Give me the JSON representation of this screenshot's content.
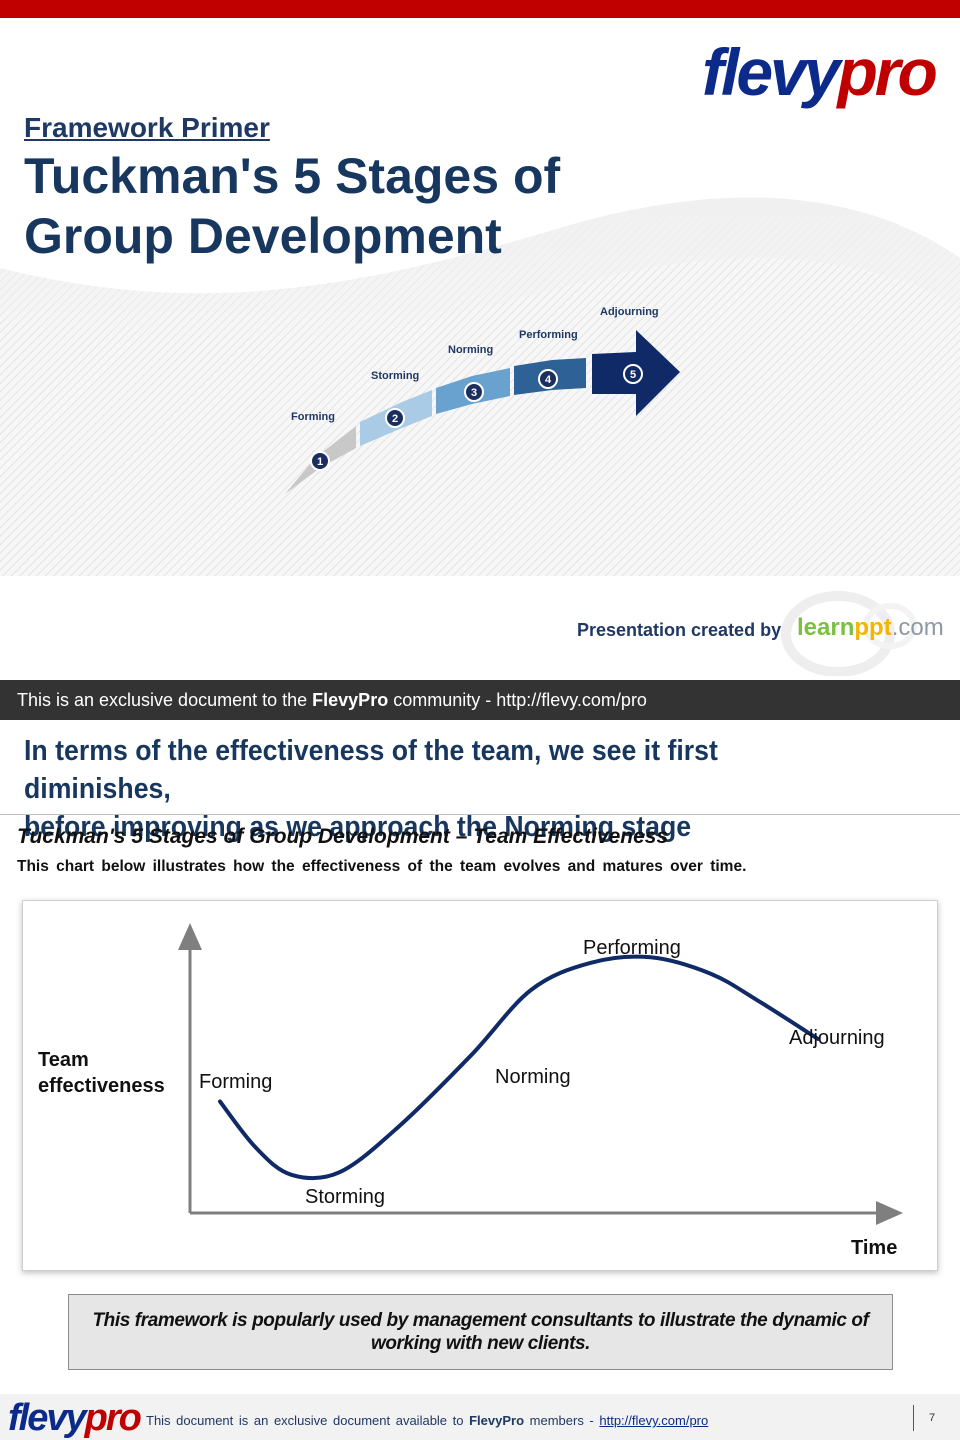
{
  "cover": {
    "logo_flevy": "flevy",
    "logo_pro": "pro",
    "primer": "Framework Primer",
    "title_line1": "Tuckman's 5 Stages of",
    "title_line2": "Group Development",
    "stages": [
      {
        "num": "1",
        "label": "Forming"
      },
      {
        "num": "2",
        "label": "Storming"
      },
      {
        "num": "3",
        "label": "Norming"
      },
      {
        "num": "4",
        "label": "Performing"
      },
      {
        "num": "5",
        "label": "Adjourning"
      }
    ],
    "created_by": "Presentation created by",
    "learn_a": "learn",
    "learn_b": "ppt",
    "learn_c": ".com"
  },
  "banner": {
    "pre": "This is an exclusive document to the ",
    "brand": "FlevyPro",
    "post": " community - http://flevy.com/pro"
  },
  "slide": {
    "headline_line1": "In terms of the effectiveness of the team, we see it first diminishes,",
    "headline_line2": "before improving as we approach the Norming stage",
    "subtitle": "Tuckman's 5 Stages of Group Development – Team Effectiveness",
    "description": "This chart below illustrates how the effectiveness of the team evolves and matures over time.",
    "note": "This framework is popularly used by management consultants to illustrate the dynamic of working with new clients."
  },
  "chart_data": {
    "type": "line",
    "xlabel": "Time",
    "ylabel_line1": "Team",
    "ylabel_line2": "effectiveness",
    "series": [
      {
        "x": [
          0,
          0.06,
          0.12,
          0.2,
          0.3,
          0.42,
          0.52,
          0.62,
          0.72,
          0.82,
          0.9,
          1.0
        ],
        "y": [
          0.41,
          0.24,
          0.14,
          0.15,
          0.32,
          0.58,
          0.82,
          0.92,
          0.94,
          0.88,
          0.78,
          0.64
        ]
      }
    ],
    "annotations": [
      "Forming",
      "Storming",
      "Norming",
      "Performing",
      "Adjourning"
    ],
    "color": "#0f2a66"
  },
  "footer": {
    "logo_flevy": "flevy",
    "logo_pro": "pro",
    "pre": "This document is an exclusive document available to ",
    "brand": "FlevyPro",
    "mid": " members - ",
    "link": "http://flevy.com/pro",
    "page": "7"
  },
  "colors": {
    "brand_red": "#c00000",
    "brand_navy": "#17375e",
    "stage_1": "#c8c8c8",
    "stage_2": "#a9cbe6",
    "stage_3": "#6aa2cf",
    "stage_4": "#2e6196",
    "stage_5": "#0f2a66"
  }
}
